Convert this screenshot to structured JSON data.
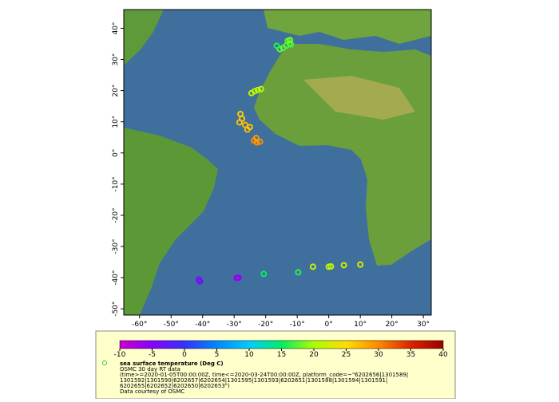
{
  "map": {
    "lonlim": [
      -65,
      32.5
    ],
    "latlim": [
      -52,
      46
    ],
    "lonticks": [
      {
        "value": -60,
        "label": "-60°"
      },
      {
        "value": -50,
        "label": "-50°"
      },
      {
        "value": -40,
        "label": "-40°"
      },
      {
        "value": -30,
        "label": "-30°"
      },
      {
        "value": -20,
        "label": "-20°"
      },
      {
        "value": -10,
        "label": "-10°"
      },
      {
        "value": 0,
        "label": "0°"
      },
      {
        "value": 10,
        "label": "10°"
      },
      {
        "value": 20,
        "label": "20°"
      },
      {
        "value": 30,
        "label": "30°"
      }
    ],
    "latticks": [
      {
        "value": -50,
        "label": "-50°"
      },
      {
        "value": -40,
        "label": "-40°"
      },
      {
        "value": -30,
        "label": "-30°"
      },
      {
        "value": -20,
        "label": "-20°"
      },
      {
        "value": -10,
        "label": "-10°"
      },
      {
        "value": 0,
        "label": "0°"
      },
      {
        "value": 10,
        "label": "10°"
      },
      {
        "value": 20,
        "label": "20°"
      },
      {
        "value": 30,
        "label": "30°"
      },
      {
        "value": 40,
        "label": "40°"
      }
    ],
    "points": {
      "lon": [
        -13,
        -12.5,
        -13.5,
        -14.5,
        -15.5,
        -12,
        -16.5,
        -12.3,
        -23.5,
        -22.5,
        -21.5,
        -24.5,
        -28,
        -27.5,
        -28.3,
        -26.5,
        -25.8,
        -25,
        -23.7,
        -22.8,
        -21.8,
        -23,
        -41.2,
        -40.8,
        -29.2,
        -28.6,
        -20.6,
        -9.7,
        -5,
        0,
        0.7,
        4.8,
        10
      ],
      "lat": [
        36,
        35.2,
        34.4,
        33.7,
        33.3,
        34.8,
        34.4,
        36.2,
        19.8,
        20.2,
        20.5,
        19.2,
        12.5,
        11,
        9.8,
        9,
        7.5,
        8.3,
        4,
        3.4,
        3.6,
        4.8,
        -40.6,
        -41.2,
        -40.1,
        -40,
        -38.8,
        -38.3,
        -36.5,
        -36.5,
        -36.4,
        -36,
        -35.8
      ],
      "temp": [
        17,
        17,
        17.5,
        17.5,
        18,
        17,
        16,
        19,
        21,
        21,
        21,
        21,
        26,
        26,
        26.5,
        27,
        27,
        26.5,
        29.5,
        29.5,
        29.5,
        29,
        -4,
        -4,
        -6,
        -6,
        15,
        16,
        22,
        21,
        21,
        22,
        23
      ]
    }
  },
  "colorbar": {
    "lim": [
      -10,
      40
    ],
    "ticks": [
      -10,
      -5,
      0,
      5,
      10,
      15,
      20,
      25,
      30,
      35,
      40
    ],
    "colors": [
      "#cc00cc",
      "#8800ff",
      "#3333ff",
      "#0088ff",
      "#00ccff",
      "#00ee66",
      "#aaff00",
      "#ffdd00",
      "#ff8800",
      "#dd2200",
      "#990000"
    ]
  },
  "legend": {
    "variable": "sea surface temperature (Deg C)",
    "dataset": "OSMC 30 day RT data",
    "query": [
      "(time>=2020-01-05T00:00:00Z, time<=2020-03-24T00:00:00Z, platform_code=~\"6202656|1301589|",
      "1301592|1301590|6202657|6202654|1301595|1301593|6202651|1301588|1301594|1301591|",
      "6202655|6202652|6202650|6202653\")"
    ],
    "credit": "Data courtesy of OSMC"
  }
}
